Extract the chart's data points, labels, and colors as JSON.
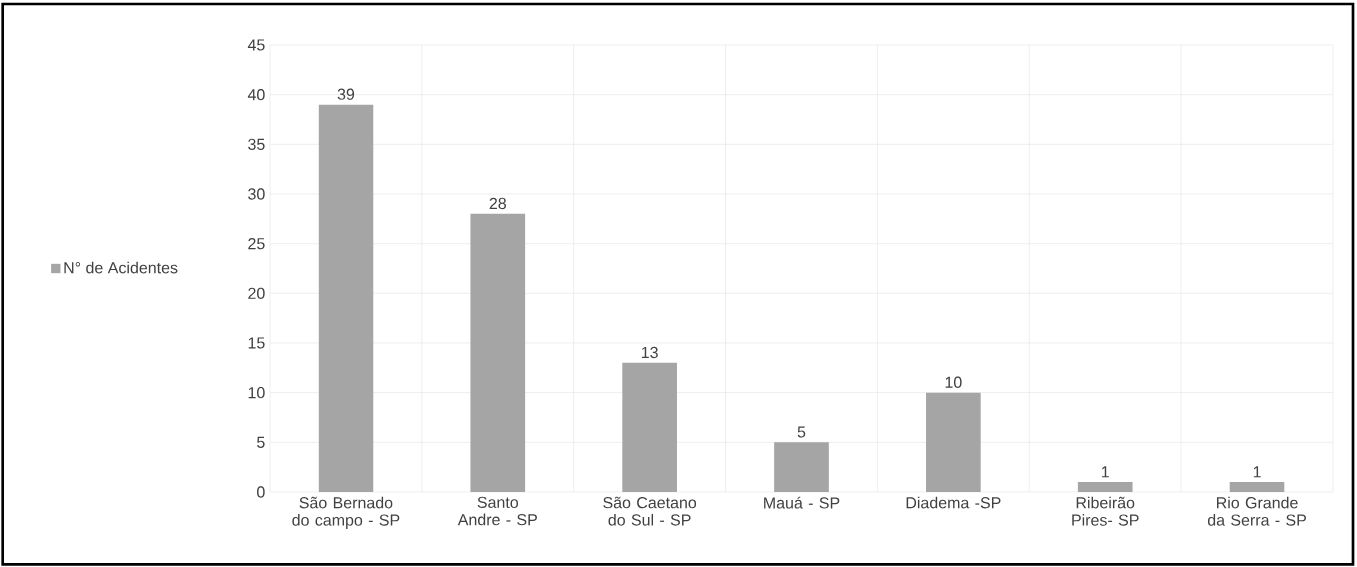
{
  "chart_data": {
    "type": "bar",
    "categories": [
      "São Bernado do campo - SP",
      "Santo Andre - SP",
      "São Caetano do Sul - SP",
      "Mauá - SP",
      "Diadema -SP",
      "Ribeirão Pires- SP",
      "Rio Grande da Serra - SP"
    ],
    "series": [
      {
        "name": "N° de Acidentes",
        "color": "#a5a5a5",
        "values": [
          39,
          28,
          13,
          5,
          10,
          1,
          1
        ]
      }
    ],
    "ylim": [
      0,
      45
    ],
    "yticks": [
      0,
      5,
      10,
      15,
      20,
      25,
      30,
      35,
      40,
      45
    ],
    "grid": true,
    "legend": "left",
    "data_labels": true
  }
}
